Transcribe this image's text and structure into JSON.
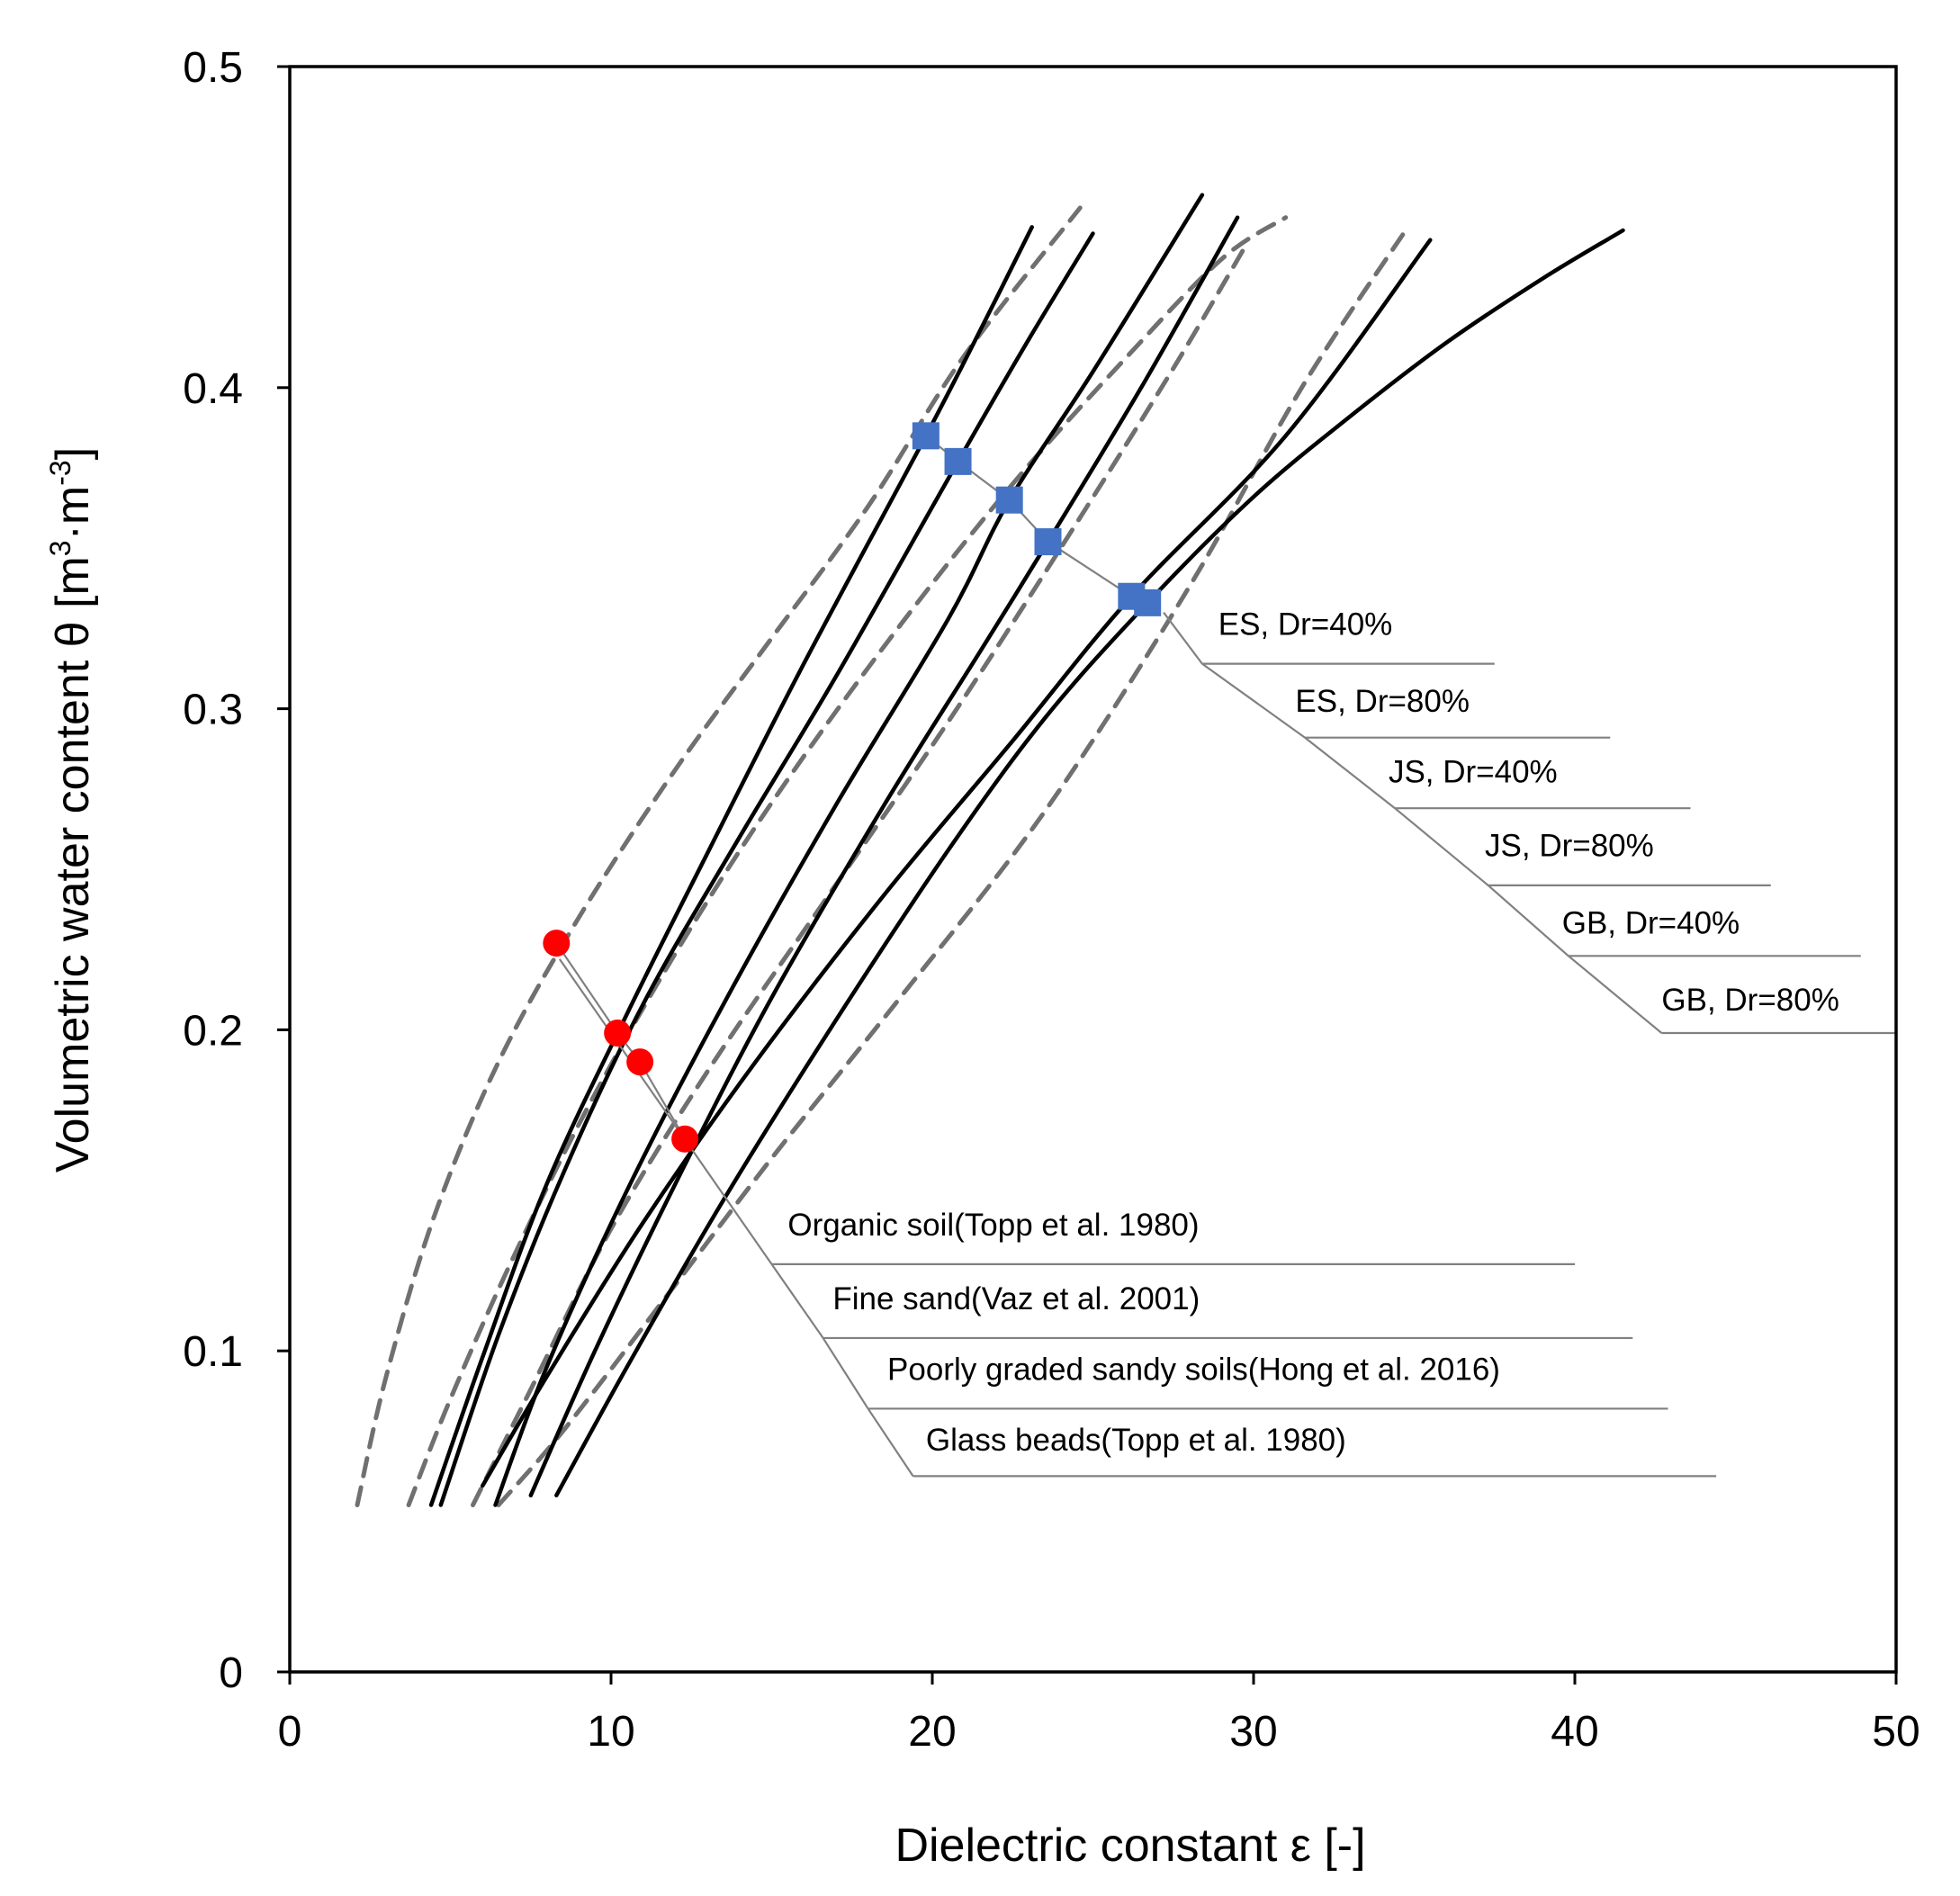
{
  "chart_data": {
    "type": "line",
    "title": "",
    "xlabel": "Dielectric constant ε [-]",
    "ylabel_main": "Volumetric water content θ [m",
    "ylabel_sup1": "3",
    "ylabel_mid": "·m",
    "ylabel_sup2": "-3",
    "ylabel_end": "]",
    "xlim": [
      0,
      50
    ],
    "ylim": [
      0,
      0.5
    ],
    "xticks": [
      0,
      10,
      20,
      30,
      40,
      50
    ],
    "xtick_labels": [
      "0",
      "10",
      "20",
      "30",
      "40",
      "50"
    ],
    "yticks": [
      0,
      0.1,
      0.2,
      0.3,
      0.4,
      0.5
    ],
    "ytick_labels": [
      "0",
      "0.1",
      "0.2",
      "0.3",
      "0.4",
      "0.5"
    ],
    "solid_series_color": "#000000",
    "dashed_series_color": "#707070",
    "square_marker_color": "#4472C4",
    "circle_marker_color": "#FF0000",
    "leader_color": "#808080",
    "dashed_series": [
      {
        "id": "organic-soil",
        "x": [
          2.1,
          3,
          4.5,
          6.5,
          9,
          12,
          15,
          18,
          21,
          24.6
        ],
        "y": [
          0.052,
          0.092,
          0.142,
          0.19,
          0.235,
          0.281,
          0.322,
          0.363,
          0.41,
          0.456
        ]
      },
      {
        "id": "fine-sand",
        "x": [
          3.7,
          5,
          7,
          9.5,
          12.5,
          15.5,
          19,
          22.5,
          26,
          29,
          31
        ],
        "y": [
          0.052,
          0.085,
          0.13,
          0.18,
          0.232,
          0.278,
          0.326,
          0.37,
          0.409,
          0.44,
          0.453
        ]
      },
      {
        "id": "poorly-graded",
        "x": [
          5.7,
          7.5,
          10,
          13,
          16.5,
          20.5,
          24.5,
          27.5,
          29.8
        ],
        "y": [
          0.052,
          0.088,
          0.138,
          0.187,
          0.238,
          0.296,
          0.358,
          0.406,
          0.445
        ]
      },
      {
        "id": "glass-beads",
        "x": [
          6.5,
          8.5,
          11.5,
          15,
          19,
          23.5,
          28,
          31.5,
          34.8
        ],
        "y": [
          0.052,
          0.075,
          0.114,
          0.16,
          0.21,
          0.268,
          0.338,
          0.4,
          0.45
        ]
      }
    ],
    "solid_series": [
      {
        "id": "es-dr40",
        "x": [
          4.4,
          6,
          8,
          10.5,
          13,
          16,
          19.8,
          21.6,
          23.1
        ],
        "y": [
          0.052,
          0.098,
          0.152,
          0.205,
          0.255,
          0.314,
          0.385,
          0.42,
          0.45
        ]
      },
      {
        "id": "es-dr80",
        "x": [
          4.7,
          6.5,
          8.5,
          11,
          14,
          17,
          20.8,
          23,
          25
        ],
        "y": [
          0.052,
          0.105,
          0.155,
          0.208,
          0.26,
          0.31,
          0.377,
          0.415,
          0.448
        ]
      },
      {
        "id": "js-dr40",
        "x": [
          6.4,
          8,
          10.5,
          13.5,
          17,
          20.5,
          22.4,
          25,
          28.4
        ],
        "y": [
          0.052,
          0.095,
          0.15,
          0.208,
          0.27,
          0.328,
          0.365,
          0.405,
          0.46
        ]
      },
      {
        "id": "js-dr80",
        "x": [
          7.5,
          9.5,
          12,
          15,
          18.5,
          21.5,
          23.6,
          26.5,
          29.5
        ],
        "y": [
          0.055,
          0.1,
          0.152,
          0.21,
          0.27,
          0.318,
          0.352,
          0.4,
          0.453
        ]
      },
      {
        "id": "gb-dr40",
        "x": [
          6,
          8,
          11,
          14.5,
          18.5,
          22.5,
          26.2,
          31,
          35.5
        ],
        "y": [
          0.058,
          0.092,
          0.14,
          0.19,
          0.242,
          0.29,
          0.335,
          0.385,
          0.446
        ]
      },
      {
        "id": "gb-dr80",
        "x": [
          8.3,
          10.5,
          13.5,
          17,
          20.5,
          23.5,
          26.7,
          30,
          33,
          36,
          39,
          41.5
        ],
        "y": [
          0.055,
          0.095,
          0.147,
          0.203,
          0.256,
          0.297,
          0.333,
          0.366,
          0.391,
          0.414,
          0.434,
          0.449
        ]
      }
    ],
    "square_markers": {
      "x": [
        19.8,
        20.8,
        22.4,
        23.6,
        26.2,
        26.7
      ],
      "y": [
        0.385,
        0.377,
        0.365,
        0.352,
        0.335,
        0.333
      ]
    },
    "circle_markers": {
      "x": [
        8.3,
        10.2,
        10.9,
        12.3
      ],
      "y": [
        0.227,
        0.199,
        0.19,
        0.166
      ]
    },
    "square_annotations": {
      "leader_start": [
        27.2,
        0.33
      ],
      "labels": [
        {
          "text": "ES, Dr=40%",
          "text_x": 28.9,
          "text_y": 0.323,
          "elbow": [
            28.4,
            0.314
          ],
          "end_x": 37.5
        },
        {
          "text": "ES, Dr=80%",
          "text_x": 31.3,
          "text_y": 0.299,
          "elbow": [
            31.6,
            0.291
          ],
          "end_x": 41.1
        },
        {
          "text": "JS, Dr=40%",
          "text_x": 34.2,
          "text_y": 0.277,
          "elbow": [
            34.4,
            0.269
          ],
          "end_x": 43.6
        },
        {
          "text": "JS, Dr=80%",
          "text_x": 37.2,
          "text_y": 0.254,
          "elbow": [
            37.3,
            0.245
          ],
          "end_x": 46.1
        },
        {
          "text": "GB, Dr=40%",
          "text_x": 39.6,
          "text_y": 0.23,
          "elbow": [
            39.8,
            0.223
          ],
          "end_x": 48.9
        },
        {
          "text": "GB, Dr=80%",
          "text_x": 42.7,
          "text_y": 0.206,
          "elbow": [
            42.7,
            0.199
          ],
          "end_x": 50.0
        }
      ]
    },
    "circle_annotations": {
      "leader_start": [
        8.4,
        0.222
      ],
      "labels": [
        {
          "text": "Organic soil(Topp et al. 1980)",
          "text_x": 15.5,
          "text_y": 0.136,
          "elbow": [
            15.0,
            0.127
          ],
          "end_x": 40.0
        },
        {
          "text": "Fine sand(Vaz et al. 2001)",
          "text_x": 16.9,
          "text_y": 0.113,
          "elbow": [
            16.6,
            0.104
          ],
          "end_x": 41.8
        },
        {
          "text": "Poorly graded sandy soils(Hong et al. 2016)",
          "text_x": 18.6,
          "text_y": 0.091,
          "elbow": [
            18.0,
            0.082
          ],
          "end_x": 42.9
        },
        {
          "text": "Glass beads(Topp et al. 1980)",
          "text_x": 19.8,
          "text_y": 0.069,
          "elbow": [
            19.4,
            0.061
          ],
          "end_x": 44.4
        }
      ]
    }
  }
}
